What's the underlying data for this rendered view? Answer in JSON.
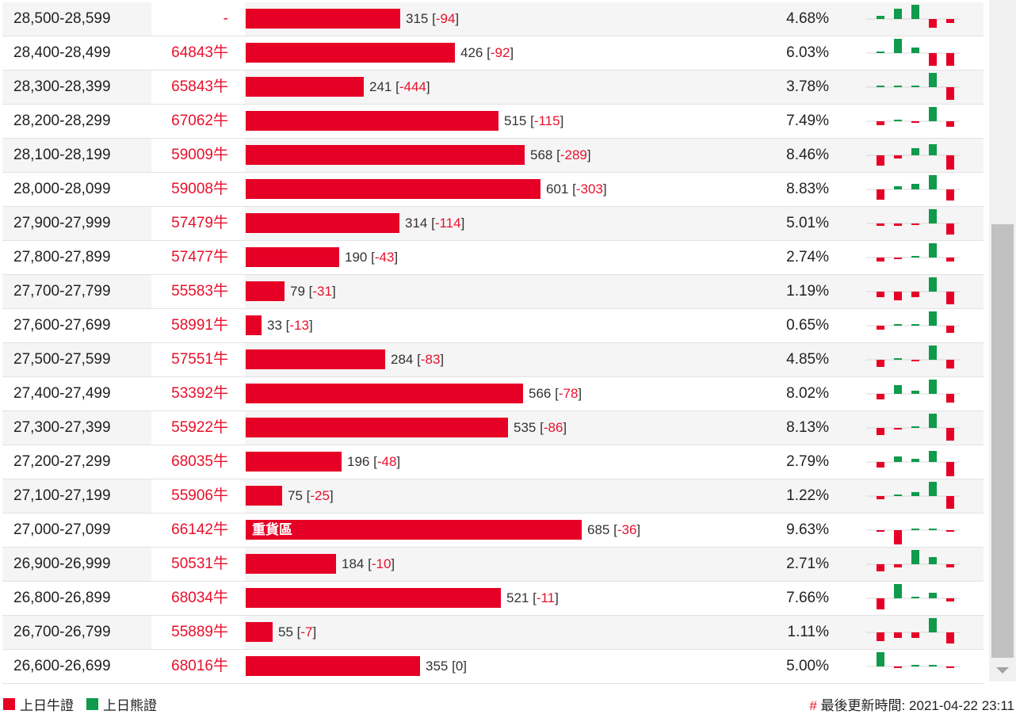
{
  "colors": {
    "bull": "#e60026",
    "bear": "#0f9a4c",
    "bull_text": "#e8102b"
  },
  "bar_scale_max": 685,
  "rows": [
    {
      "range": "28,500-28,599",
      "code": "-",
      "value": "315",
      "change": "-94",
      "count": 315,
      "pct": "4.68%",
      "tag": "",
      "trend": [
        {
          "type": "bear",
          "level": 0.2
        },
        {
          "type": "bear",
          "level": 0.7
        },
        {
          "type": "bear",
          "level": 1.0
        },
        {
          "type": "bull",
          "level": 0.6
        },
        {
          "type": "bull",
          "level": 0.3
        }
      ]
    },
    {
      "range": "28,400-28,499",
      "code": "64843牛",
      "value": "426",
      "change": "-92",
      "count": 426,
      "pct": "6.03%",
      "tag": "",
      "trend": [
        {
          "type": "bear",
          "level": 0.1
        },
        {
          "type": "bear",
          "level": 1.0
        },
        {
          "type": "bear",
          "level": 0.4
        },
        {
          "type": "bull",
          "level": 0.9
        },
        {
          "type": "bull",
          "level": 0.9
        }
      ]
    },
    {
      "range": "28,300-28,399",
      "code": "65843牛",
      "value": "241",
      "change": "-444",
      "count": 241,
      "pct": "3.78%",
      "tag": "",
      "trend": [
        {
          "type": "bear",
          "level": 0.1
        },
        {
          "type": "bear",
          "level": 0.1
        },
        {
          "type": "bear",
          "level": 0.1
        },
        {
          "type": "bear",
          "level": 1.0
        },
        {
          "type": "bull",
          "level": 0.9
        }
      ]
    },
    {
      "range": "28,200-28,299",
      "code": "67062牛",
      "value": "515",
      "change": "-115",
      "count": 515,
      "pct": "7.49%",
      "tag": "",
      "trend": [
        {
          "type": "bull",
          "level": 0.3
        },
        {
          "type": "bear",
          "level": 0.1
        },
        {
          "type": "bull",
          "level": 0.1
        },
        {
          "type": "bear",
          "level": 1.0
        },
        {
          "type": "bull",
          "level": 0.4
        }
      ]
    },
    {
      "range": "28,100-28,199",
      "code": "59009牛",
      "value": "568",
      "change": "-289",
      "count": 568,
      "pct": "8.46%",
      "tag": "",
      "trend": [
        {
          "type": "bull",
          "level": 0.7
        },
        {
          "type": "bull",
          "level": 0.2
        },
        {
          "type": "bear",
          "level": 0.5
        },
        {
          "type": "bear",
          "level": 0.8
        },
        {
          "type": "bull",
          "level": 1.0
        }
      ]
    },
    {
      "range": "28,000-28,099",
      "code": "59008牛",
      "value": "601",
      "change": "-303",
      "count": 601,
      "pct": "8.83%",
      "tag": "",
      "trend": [
        {
          "type": "bull",
          "level": 0.7
        },
        {
          "type": "bear",
          "level": 0.2
        },
        {
          "type": "bear",
          "level": 0.4
        },
        {
          "type": "bear",
          "level": 1.0
        },
        {
          "type": "bull",
          "level": 0.8
        }
      ]
    },
    {
      "range": "27,900-27,999",
      "code": "57479牛",
      "value": "314",
      "change": "-114",
      "count": 314,
      "pct": "5.01%",
      "tag": "",
      "trend": [
        {
          "type": "bull",
          "level": 0.15
        },
        {
          "type": "bull",
          "level": 0.15
        },
        {
          "type": "bull",
          "level": 0.1
        },
        {
          "type": "bear",
          "level": 1.0
        },
        {
          "type": "bull",
          "level": 0.8
        }
      ]
    },
    {
      "range": "27,800-27,899",
      "code": "57477牛",
      "value": "190",
      "change": "-43",
      "count": 190,
      "pct": "2.74%",
      "tag": "",
      "trend": [
        {
          "type": "bull",
          "level": 0.25
        },
        {
          "type": "bull",
          "level": 0.1
        },
        {
          "type": "bear",
          "level": 0.1
        },
        {
          "type": "bear",
          "level": 1.0
        },
        {
          "type": "bull",
          "level": 0.3
        }
      ]
    },
    {
      "range": "27,700-27,799",
      "code": "55583牛",
      "value": "79",
      "change": "-31",
      "count": 79,
      "pct": "1.19%",
      "tag": "",
      "trend": [
        {
          "type": "bull",
          "level": 0.4
        },
        {
          "type": "bull",
          "level": 0.6
        },
        {
          "type": "bull",
          "level": 0.4
        },
        {
          "type": "bear",
          "level": 1.0
        },
        {
          "type": "bull",
          "level": 0.9
        }
      ]
    },
    {
      "range": "27,600-27,699",
      "code": "58991牛",
      "value": "33",
      "change": "-13",
      "count": 33,
      "pct": "0.65%",
      "tag": "",
      "trend": [
        {
          "type": "bull",
          "level": 0.3
        },
        {
          "type": "bear",
          "level": 0.0
        },
        {
          "type": "bear",
          "level": 0.1
        },
        {
          "type": "bear",
          "level": 1.0
        },
        {
          "type": "bull",
          "level": 0.5
        }
      ]
    },
    {
      "range": "27,500-27,599",
      "code": "57551牛",
      "value": "284",
      "change": "-83",
      "count": 284,
      "pct": "4.85%",
      "tag": "",
      "trend": [
        {
          "type": "bull",
          "level": 0.5
        },
        {
          "type": "bear",
          "level": 0.1
        },
        {
          "type": "bull",
          "level": 0.1
        },
        {
          "type": "bear",
          "level": 1.0
        },
        {
          "type": "bull",
          "level": 0.6
        }
      ]
    },
    {
      "range": "27,400-27,499",
      "code": "53392牛",
      "value": "566",
      "change": "-78",
      "count": 566,
      "pct": "8.02%",
      "tag": "",
      "trend": [
        {
          "type": "bull",
          "level": 0.4
        },
        {
          "type": "bear",
          "level": 0.6
        },
        {
          "type": "bear",
          "level": 0.2
        },
        {
          "type": "bear",
          "level": 1.0
        },
        {
          "type": "bull",
          "level": 0.6
        }
      ]
    },
    {
      "range": "27,300-27,399",
      "code": "55922牛",
      "value": "535",
      "change": "-86",
      "count": 535,
      "pct": "8.13%",
      "tag": "",
      "trend": [
        {
          "type": "bull",
          "level": 0.5
        },
        {
          "type": "bull",
          "level": 0.1
        },
        {
          "type": "bear",
          "level": 0.1
        },
        {
          "type": "bear",
          "level": 1.0
        },
        {
          "type": "bull",
          "level": 0.9
        }
      ]
    },
    {
      "range": "27,200-27,299",
      "code": "68035牛",
      "value": "196",
      "change": "-48",
      "count": 196,
      "pct": "2.79%",
      "tag": "",
      "trend": [
        {
          "type": "bull",
          "level": 0.4
        },
        {
          "type": "bear",
          "level": 0.4
        },
        {
          "type": "bear",
          "level": 0.2
        },
        {
          "type": "bear",
          "level": 0.8
        },
        {
          "type": "bull",
          "level": 1.0
        }
      ]
    },
    {
      "range": "27,100-27,199",
      "code": "55906牛",
      "value": "75",
      "change": "-25",
      "count": 75,
      "pct": "1.22%",
      "tag": "",
      "trend": [
        {
          "type": "bull",
          "level": 0.2
        },
        {
          "type": "bear",
          "level": 0.1
        },
        {
          "type": "bear",
          "level": 0.3
        },
        {
          "type": "bear",
          "level": 1.0
        },
        {
          "type": "bull",
          "level": 0.9
        }
      ]
    },
    {
      "range": "27,000-27,099",
      "code": "66142牛",
      "value": "685",
      "change": "-36",
      "count": 685,
      "pct": "9.63%",
      "tag": "重貨區",
      "trend": [
        {
          "type": "bull",
          "level": 0.1
        },
        {
          "type": "bull",
          "level": 1.0
        },
        {
          "type": "bear",
          "level": 0.0
        },
        {
          "type": "bear",
          "level": 0.1
        },
        {
          "type": "bull",
          "level": 0.1
        }
      ]
    },
    {
      "range": "26,900-26,999",
      "code": "50531牛",
      "value": "184",
      "change": "-10",
      "count": 184,
      "pct": "2.71%",
      "tag": "",
      "trend": [
        {
          "type": "bull",
          "level": 0.5
        },
        {
          "type": "bull",
          "level": 0.2
        },
        {
          "type": "bear",
          "level": 1.0
        },
        {
          "type": "bear",
          "level": 0.5
        },
        {
          "type": "bull",
          "level": 0.2
        }
      ]
    },
    {
      "range": "26,800-26,899",
      "code": "68034牛",
      "value": "521",
      "change": "-11",
      "count": 521,
      "pct": "7.66%",
      "tag": "",
      "trend": [
        {
          "type": "bull",
          "level": 0.8
        },
        {
          "type": "bear",
          "level": 1.0
        },
        {
          "type": "bear",
          "level": 0.0
        },
        {
          "type": "bear",
          "level": 0.4
        },
        {
          "type": "bull",
          "level": 0.2
        }
      ]
    },
    {
      "range": "26,700-26,799",
      "code": "55889牛",
      "value": "55",
      "change": "-7",
      "count": 55,
      "pct": "1.11%",
      "tag": "",
      "trend": [
        {
          "type": "bull",
          "level": 0.6
        },
        {
          "type": "bull",
          "level": 0.4
        },
        {
          "type": "bull",
          "level": 0.4
        },
        {
          "type": "bear",
          "level": 1.0
        },
        {
          "type": "bull",
          "level": 0.8
        }
      ]
    },
    {
      "range": "26,600-26,699",
      "code": "68016牛",
      "value": "355",
      "change": "0",
      "count": 355,
      "pct": "5.00%",
      "tag": "",
      "trend": [
        {
          "type": "bear",
          "level": 1.0
        },
        {
          "type": "bull",
          "level": 0.1
        },
        {
          "type": "bear",
          "level": 0.1
        },
        {
          "type": "bear",
          "level": 0.1
        },
        {
          "type": "bull",
          "level": 0.0
        }
      ]
    }
  ],
  "legend": {
    "bull_label": "上日牛證",
    "bear_label": "上日熊證"
  },
  "footer": {
    "hash": "#",
    "update_label": "最後更新時間:",
    "update_time": "2021-04-22 23:11"
  }
}
